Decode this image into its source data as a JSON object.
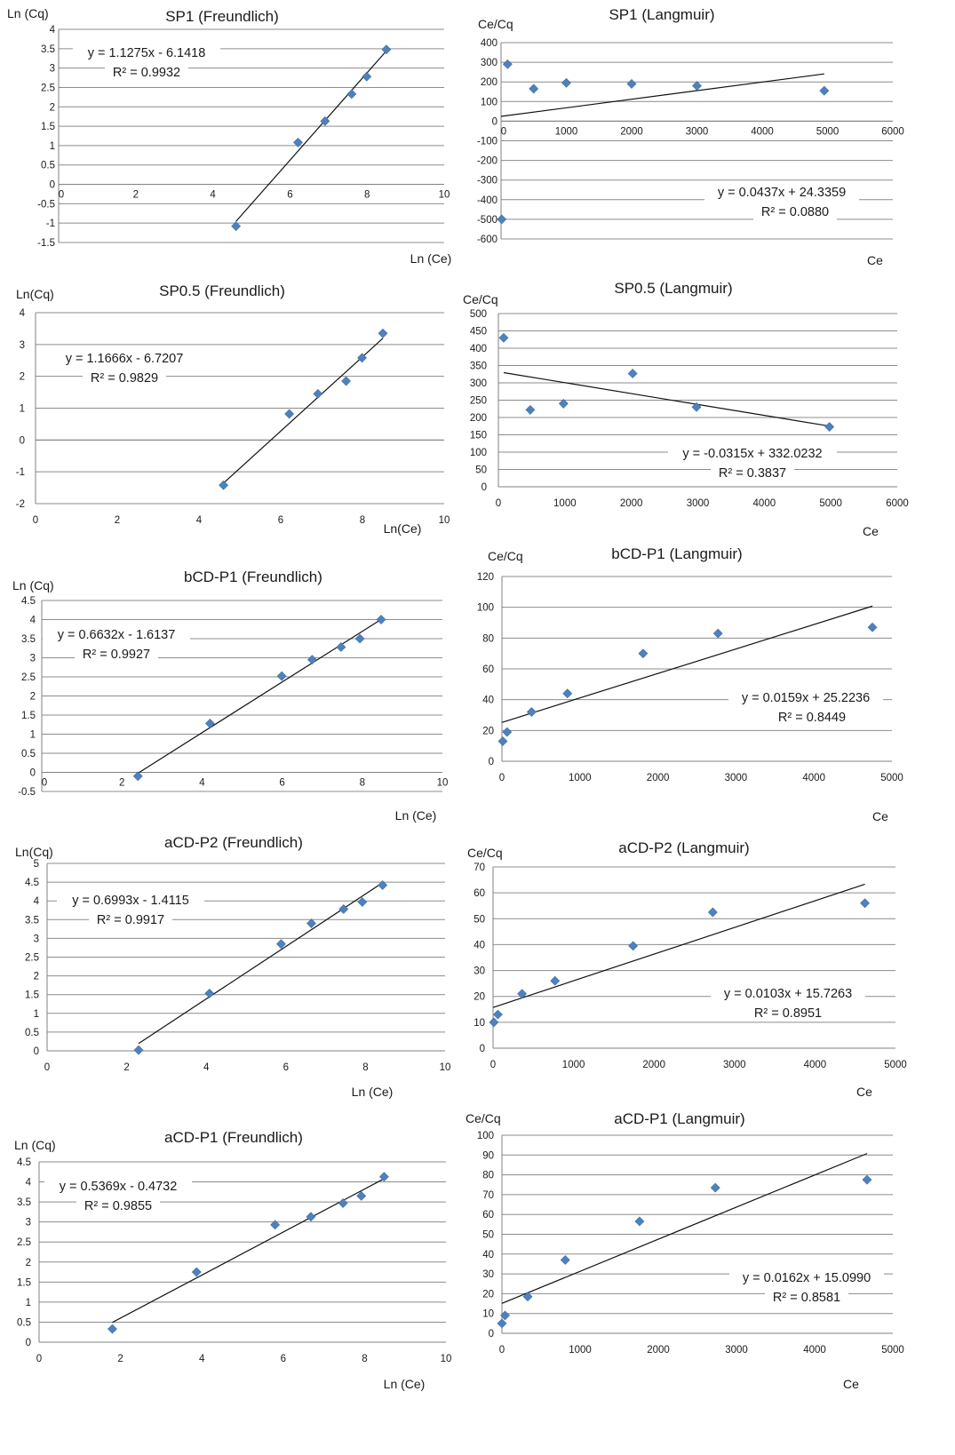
{
  "chart_data": [
    {
      "type": "scatter",
      "title": "SP1 (Freundlich)",
      "xlabel": "Ln (Ce)",
      "ylabel": "Ln (Cq)",
      "xlim": [
        0,
        10
      ],
      "ylim": [
        -1.5,
        4
      ],
      "xticks": [
        0,
        2,
        4,
        6,
        8,
        10
      ],
      "yticks": [
        -1.5,
        -1,
        -0.5,
        0,
        0.5,
        1,
        1.5,
        2,
        2.5,
        3,
        3.5,
        4
      ],
      "xaxis_at": 0,
      "points": [
        [
          4.6,
          -1.08
        ],
        [
          6.21,
          1.08
        ],
        [
          6.91,
          1.63
        ],
        [
          7.6,
          2.33
        ],
        [
          7.99,
          2.78
        ],
        [
          8.5,
          3.48
        ]
      ],
      "trend": {
        "slope": 1.1275,
        "intercept": -6.1418,
        "x_range": [
          4.6,
          8.5
        ]
      },
      "equation": "y = 1.1275x - 6.1418",
      "r2": "R² = 0.9932",
      "grid": true,
      "marker_color": "#4f81bd"
    },
    {
      "type": "scatter",
      "title": "SP1 (Langmuir)",
      "xlabel": "Ce",
      "ylabel": "Ce/Cq",
      "xlim": [
        0,
        6000
      ],
      "ylim": [
        -600,
        400
      ],
      "xticks": [
        0,
        1000,
        2000,
        3000,
        4000,
        5000,
        6000
      ],
      "yticks": [
        -600,
        -500,
        -400,
        -300,
        -200,
        -100,
        0,
        100,
        200,
        300,
        400
      ],
      "xaxis_at": 0,
      "points": [
        [
          10,
          -500
        ],
        [
          100,
          290
        ],
        [
          500,
          165
        ],
        [
          1000,
          195
        ],
        [
          2000,
          190
        ],
        [
          3000,
          180
        ],
        [
          4950,
          155
        ]
      ],
      "trend": {
        "slope": 0.0437,
        "intercept": 24.3359,
        "x_range": [
          0,
          4950
        ]
      },
      "equation": "y = 0.0437x + 24.3359",
      "r2": "R² = 0.0880",
      "grid": true,
      "marker_color": "#4f81bd"
    },
    {
      "type": "scatter",
      "title": "SP0.5 (Freundlich)",
      "xlabel": "Ln(Ce)",
      "ylabel": "Ln(Cq)",
      "xlim": [
        0,
        10
      ],
      "ylim": [
        -2,
        4
      ],
      "xticks": [
        0,
        2,
        4,
        6,
        8,
        10
      ],
      "yticks": [
        -2,
        -1,
        0,
        1,
        2,
        3,
        4
      ],
      "xaxis_at": 0,
      "points": [
        [
          4.6,
          -1.42
        ],
        [
          6.21,
          0.82
        ],
        [
          6.91,
          1.45
        ],
        [
          7.6,
          1.85
        ],
        [
          7.99,
          2.58
        ],
        [
          8.5,
          3.35
        ]
      ],
      "trend": {
        "slope": 1.1666,
        "intercept": -6.7207,
        "x_range": [
          4.6,
          8.5
        ]
      },
      "equation": "y = 1.1666x - 6.7207",
      "r2": "R² = 0.9829",
      "grid": true,
      "marker_color": "#4f81bd"
    },
    {
      "type": "scatter",
      "title": "SP0.5 (Langmuir)",
      "xlabel": "Ce",
      "ylabel": "Ce/Cq",
      "xlim": [
        0,
        6000
      ],
      "ylim": [
        0,
        500
      ],
      "xticks": [
        0,
        1000,
        2000,
        3000,
        4000,
        5000,
        6000
      ],
      "yticks": [
        0,
        50,
        100,
        150,
        200,
        250,
        300,
        350,
        400,
        450,
        500
      ],
      "xaxis_at": 0,
      "points": [
        [
          80,
          430
        ],
        [
          480,
          222
        ],
        [
          980,
          240
        ],
        [
          2020,
          327
        ],
        [
          2980,
          230
        ],
        [
          4980,
          173
        ]
      ],
      "trend": {
        "slope": -0.0315,
        "intercept": 332.0232,
        "x_range": [
          80,
          4980
        ]
      },
      "equation": "y = -0.0315x + 332.0232",
      "r2": "R² = 0.3837",
      "grid": true,
      "marker_color": "#4f81bd"
    },
    {
      "type": "scatter",
      "title": "bCD-P1 (Freundlich)",
      "xlabel": "Ln (Ce)",
      "ylabel": "Ln (Cq)",
      "xlim": [
        0,
        10
      ],
      "ylim": [
        -0.5,
        4.5
      ],
      "xticks": [
        0,
        2,
        4,
        6,
        8,
        10
      ],
      "yticks": [
        -0.5,
        0,
        0.5,
        1,
        1.5,
        2,
        2.5,
        3,
        3.5,
        4,
        4.5
      ],
      "xaxis_at": 0,
      "points": [
        [
          2.4,
          -0.1
        ],
        [
          4.2,
          1.28
        ],
        [
          5.99,
          2.52
        ],
        [
          6.75,
          2.95
        ],
        [
          7.47,
          3.28
        ],
        [
          7.94,
          3.5
        ],
        [
          8.47,
          4.0
        ]
      ],
      "trend": {
        "slope": 0.6632,
        "intercept": -1.6137,
        "x_range": [
          2.4,
          8.47
        ]
      },
      "equation": "y = 0.6632x - 1.6137",
      "r2": "R² = 0.9927",
      "grid": true,
      "marker_color": "#4f81bd"
    },
    {
      "type": "scatter",
      "title": "bCD-P1 (Langmuir)",
      "xlabel": "Ce",
      "ylabel": "Ce/Cq",
      "xlim": [
        0,
        5000
      ],
      "ylim": [
        0,
        120
      ],
      "xticks": [
        0,
        1000,
        2000,
        3000,
        4000,
        5000
      ],
      "yticks": [
        0,
        20,
        40,
        60,
        80,
        100,
        120
      ],
      "xaxis_at": 0,
      "points": [
        [
          11,
          13
        ],
        [
          66,
          19
        ],
        [
          380,
          32
        ],
        [
          840,
          44
        ],
        [
          1810,
          70
        ],
        [
          2770,
          83
        ],
        [
          4750,
          87
        ]
      ],
      "trend": {
        "slope": 0.0159,
        "intercept": 25.2236,
        "x_range": [
          0,
          4750
        ]
      },
      "equation": "y = 0.0159x + 25.2236",
      "r2": "R² = 0.8449",
      "grid": true,
      "marker_color": "#4f81bd"
    },
    {
      "type": "scatter",
      "title": "aCD-P2 (Freundlich)",
      "xlabel": "Ln (Ce)",
      "ylabel": "Ln(Cq)",
      "xlim": [
        0,
        10
      ],
      "ylim": [
        0,
        5
      ],
      "xticks": [
        0,
        2,
        4,
        6,
        8,
        10
      ],
      "yticks": [
        0,
        0.5,
        1,
        1.5,
        2,
        2.5,
        3,
        3.5,
        4,
        4.5,
        5
      ],
      "xaxis_at": 0,
      "points": [
        [
          2.3,
          0.02
        ],
        [
          4.08,
          1.53
        ],
        [
          5.88,
          2.85
        ],
        [
          6.64,
          3.4
        ],
        [
          7.45,
          3.78
        ],
        [
          7.92,
          3.97
        ],
        [
          8.43,
          4.42
        ]
      ],
      "trend": {
        "slope": 0.6993,
        "intercept": -1.4115,
        "x_range": [
          2.3,
          8.43
        ]
      },
      "equation": "y = 0.6993x - 1.4115",
      "r2": "R² = 0.9917",
      "grid": true,
      "marker_color": "#4f81bd"
    },
    {
      "type": "scatter",
      "title": "aCD-P2 (Langmuir)",
      "xlabel": "Ce",
      "ylabel": "Ce/Cq",
      "xlim": [
        0,
        5000
      ],
      "ylim": [
        0,
        70
      ],
      "xticks": [
        0,
        1000,
        2000,
        3000,
        4000,
        5000
      ],
      "yticks": [
        0,
        10,
        20,
        30,
        40,
        50,
        60,
        70
      ],
      "xaxis_at": 0,
      "points": [
        [
          10,
          10
        ],
        [
          60,
          13
        ],
        [
          360,
          21
        ],
        [
          770,
          26
        ],
        [
          1740,
          39.5
        ],
        [
          2730,
          52.5
        ],
        [
          4620,
          56
        ]
      ],
      "trend": {
        "slope": 0.0103,
        "intercept": 15.7263,
        "x_range": [
          0,
          4620
        ]
      },
      "equation": "y = 0.0103x + 15.7263",
      "r2": "R² = 0.8951",
      "grid": true,
      "marker_color": "#4f81bd"
    },
    {
      "type": "scatter",
      "title": "aCD-P1 (Freundlich)",
      "xlabel": "Ln (Ce)",
      "ylabel": "Ln (Cq)",
      "xlim": [
        0,
        10
      ],
      "ylim": [
        0,
        4.5
      ],
      "xticks": [
        0,
        2,
        4,
        6,
        8,
        10
      ],
      "yticks": [
        0,
        0.5,
        1,
        1.5,
        2,
        2.5,
        3,
        3.5,
        4,
        4.5
      ],
      "xaxis_at": 0,
      "points": [
        [
          1.8,
          0.33
        ],
        [
          3.87,
          1.75
        ],
        [
          5.8,
          2.93
        ],
        [
          6.68,
          3.13
        ],
        [
          7.47,
          3.47
        ],
        [
          7.92,
          3.65
        ],
        [
          8.48,
          4.13
        ]
      ],
      "trend": {
        "slope": 0.5369,
        "intercept": -0.4732,
        "x_range": [
          1.8,
          8.48
        ]
      },
      "equation": "y = 0.5369x - 0.4732",
      "r2": "R² = 0.9855",
      "grid": true,
      "marker_color": "#4f81bd"
    },
    {
      "type": "scatter",
      "title": "aCD-P1 (Langmuir)",
      "xlabel": "Ce",
      "ylabel": "Ce/Cq",
      "xlim": [
        0,
        5000
      ],
      "ylim": [
        0,
        100
      ],
      "xticks": [
        0,
        1000,
        2000,
        3000,
        4000,
        5000
      ],
      "yticks": [
        0,
        10,
        20,
        30,
        40,
        50,
        60,
        70,
        80,
        90,
        100
      ],
      "xaxis_at": 0,
      "points": [
        [
          0,
          5
        ],
        [
          40,
          9
        ],
        [
          330,
          18.5
        ],
        [
          810,
          37
        ],
        [
          1760,
          56.5
        ],
        [
          2730,
          73.5
        ],
        [
          4670,
          77.5
        ]
      ],
      "trend": {
        "slope": 0.0162,
        "intercept": 15.099,
        "x_range": [
          0,
          4670
        ]
      },
      "equation": "y = 0.0162x + 15.0990",
      "r2": "R² = 0.8581",
      "grid": true,
      "marker_color": "#4f81bd"
    }
  ]
}
